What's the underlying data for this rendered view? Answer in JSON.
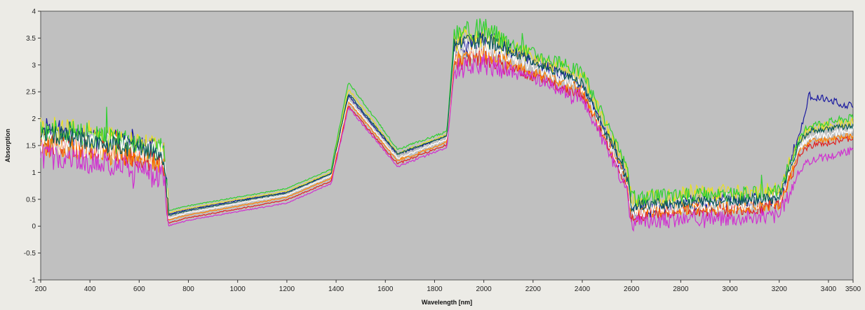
{
  "chart_data": {
    "type": "line",
    "xlabel": "Wavelength [nm]",
    "ylabel": "Absorption",
    "xlim": [
      200,
      3500
    ],
    "ylim": [
      -1,
      4
    ],
    "x_ticks": [
      200,
      400,
      600,
      800,
      1000,
      1200,
      1400,
      1600,
      1800,
      2000,
      2200,
      2400,
      2600,
      2800,
      3000,
      3200,
      3400,
      3500
    ],
    "y_ticks": [
      -1,
      -0.5,
      0,
      0.5,
      1,
      1.5,
      2,
      2.5,
      3,
      3.5,
      4
    ],
    "grid": false,
    "legend": "none",
    "plot_background": "#c0c0c0",
    "series": [
      {
        "color": "#1a1aa0",
        "offset": 0.03,
        "noise": 0.25,
        "values": {
          "x": [
            200,
            400,
            600,
            700,
            720,
            800,
            1000,
            1200,
            1380,
            1450,
            1650,
            1850,
            1880,
            2000,
            2200,
            2400,
            2580,
            2600,
            2800,
            3000,
            3200,
            3280,
            3320,
            3500
          ],
          "y": [
            1.8,
            1.6,
            1.45,
            1.3,
            0.2,
            0.28,
            0.45,
            0.6,
            0.95,
            2.4,
            1.3,
            1.65,
            3.3,
            3.45,
            3.05,
            2.6,
            0.9,
            0.3,
            0.4,
            0.42,
            0.5,
            1.6,
            2.4,
            2.2
          ]
        }
      },
      {
        "color": "#e8e020",
        "offset": 0.05,
        "noise": 0.3,
        "values": {
          "x": [
            200,
            400,
            600,
            700,
            720,
            800,
            1000,
            1200,
            1380,
            1450,
            1650,
            1850,
            1880,
            2000,
            2200,
            2400,
            2580,
            2600,
            2800,
            3000,
            3200,
            3280,
            3320,
            3500
          ],
          "y": [
            1.7,
            1.65,
            1.4,
            1.3,
            0.2,
            0.28,
            0.45,
            0.6,
            0.95,
            2.5,
            1.3,
            1.65,
            3.4,
            3.5,
            3.1,
            2.75,
            1.0,
            0.4,
            0.55,
            0.55,
            0.6,
            1.55,
            1.75,
            1.9
          ]
        }
      },
      {
        "color": "#30d030",
        "offset": 0.08,
        "noise": 0.25,
        "values": {
          "x": [
            200,
            400,
            600,
            700,
            720,
            800,
            1000,
            1200,
            1380,
            1450,
            1650,
            1850,
            1880,
            2000,
            2200,
            2400,
            2580,
            2600,
            2800,
            3000,
            3200,
            3280,
            3320,
            3500
          ],
          "y": [
            1.7,
            1.6,
            1.4,
            1.3,
            0.21,
            0.3,
            0.46,
            0.62,
            0.98,
            2.6,
            1.35,
            1.68,
            3.5,
            3.6,
            3.15,
            2.8,
            1.0,
            0.45,
            0.5,
            0.5,
            0.55,
            1.5,
            1.8,
            1.95
          ]
        }
      },
      {
        "color": "#e02020",
        "offset": -0.06,
        "noise": 0.2,
        "values": {
          "x": [
            200,
            400,
            600,
            700,
            720,
            800,
            1000,
            1200,
            1380,
            1450,
            1650,
            1850,
            1880,
            2000,
            2200,
            2400,
            2580,
            2600,
            2800,
            3000,
            3200,
            3280,
            3320,
            3500
          ],
          "y": [
            1.6,
            1.5,
            1.3,
            1.2,
            0.12,
            0.22,
            0.38,
            0.55,
            0.9,
            2.3,
            1.22,
            1.58,
            3.1,
            3.2,
            2.85,
            2.5,
            0.85,
            0.25,
            0.35,
            0.35,
            0.45,
            1.35,
            1.55,
            1.7
          ]
        }
      },
      {
        "color": "#ff8000",
        "offset": -0.03,
        "noise": 0.2,
        "values": {
          "x": [
            200,
            400,
            600,
            700,
            720,
            800,
            1000,
            1200,
            1380,
            1450,
            1650,
            1850,
            1880,
            2000,
            2200,
            2400,
            2580,
            2600,
            2800,
            3000,
            3200,
            3280,
            3320,
            3500
          ],
          "y": [
            1.5,
            1.45,
            1.25,
            1.2,
            0.15,
            0.24,
            0.4,
            0.57,
            0.92,
            2.35,
            1.24,
            1.6,
            3.15,
            3.25,
            2.9,
            2.55,
            0.9,
            0.3,
            0.35,
            0.38,
            0.45,
            1.4,
            1.6,
            1.72
          ]
        }
      },
      {
        "color": "#d030d0",
        "offset": -0.09,
        "noise": 0.25,
        "values": {
          "x": [
            200,
            400,
            600,
            700,
            720,
            800,
            1000,
            1200,
            1380,
            1450,
            1650,
            1850,
            1880,
            2000,
            2200,
            2400,
            2580,
            2600,
            2800,
            3000,
            3200,
            3280,
            3320,
            3500
          ],
          "y": [
            1.4,
            1.3,
            1.1,
            1.0,
            0.1,
            0.2,
            0.36,
            0.52,
            0.88,
            2.3,
            1.2,
            1.55,
            3.0,
            3.1,
            2.85,
            2.45,
            0.8,
            0.15,
            0.22,
            0.25,
            0.3,
            1.1,
            1.3,
            1.5
          ]
        }
      },
      {
        "color": "#ffffff",
        "offset": 0.0,
        "noise": 0.25,
        "values": {
          "x": [
            200,
            400,
            600,
            700,
            720,
            800,
            1000,
            1200,
            1380,
            1450,
            1650,
            1850,
            1880,
            2000,
            2200,
            2400,
            2580,
            2600,
            2800,
            3000,
            3200,
            3280,
            3320,
            3500
          ],
          "y": [
            1.6,
            1.5,
            1.45,
            1.3,
            0.15,
            0.25,
            0.42,
            0.58,
            0.94,
            2.35,
            1.26,
            1.62,
            3.25,
            3.35,
            3.0,
            2.6,
            0.85,
            0.3,
            0.38,
            0.4,
            0.5,
            1.45,
            1.65,
            1.8
          ]
        }
      },
      {
        "color": "#0a5a5a",
        "offset": 0.02,
        "noise": 0.18,
        "values": {
          "x": [
            200,
            400,
            600,
            700,
            720,
            800,
            1000,
            1200,
            1380,
            1450,
            1650,
            1850,
            1880,
            2000,
            2200,
            2400,
            2580,
            2600,
            2800,
            3000,
            3200,
            3280,
            3320,
            3500
          ],
          "y": [
            1.75,
            1.55,
            1.42,
            1.28,
            0.18,
            0.27,
            0.44,
            0.6,
            0.96,
            2.45,
            1.32,
            1.66,
            3.35,
            3.45,
            3.05,
            2.65,
            0.9,
            0.35,
            0.42,
            0.45,
            0.5,
            1.5,
            1.75,
            1.85
          ]
        }
      }
    ]
  }
}
